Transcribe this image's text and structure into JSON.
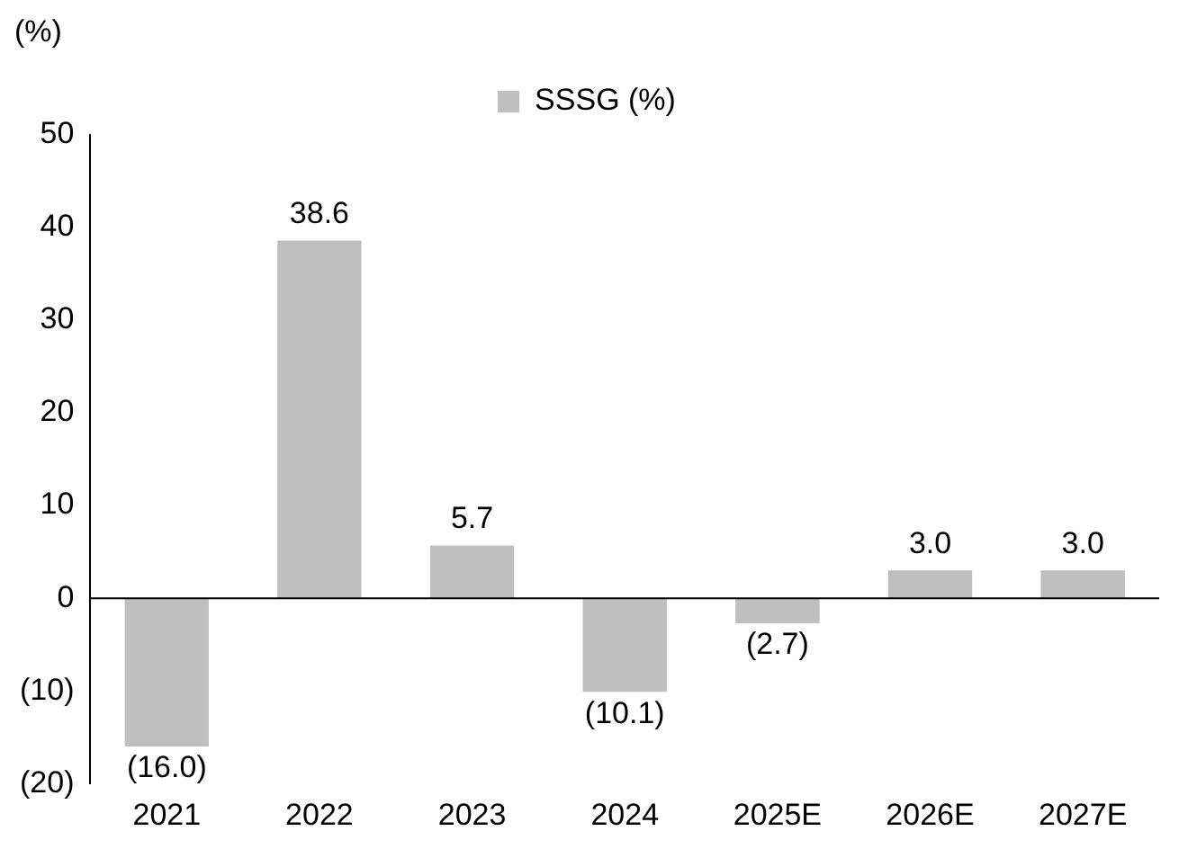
{
  "chart_data": {
    "type": "bar",
    "ylabel": "(%)",
    "categories": [
      "2021",
      "2022",
      "2023",
      "2024",
      "2025E",
      "2026E",
      "2027E"
    ],
    "series": [
      {
        "name": "SSSG (%)",
        "color": "#bfbfbf",
        "values": [
          -16.0,
          38.6,
          5.7,
          -10.1,
          -2.7,
          3.0,
          3.0
        ],
        "value_labels": [
          "(16.0)",
          "38.6",
          "5.7",
          "(10.1)",
          "(2.7)",
          "3.0",
          "3.0"
        ]
      }
    ],
    "ylim": [
      -20,
      50
    ],
    "yticks": [
      {
        "value": -20,
        "label": "(20)"
      },
      {
        "value": -10,
        "label": "(10)"
      },
      0,
      10,
      20,
      30,
      40,
      50
    ],
    "legend": "top"
  }
}
